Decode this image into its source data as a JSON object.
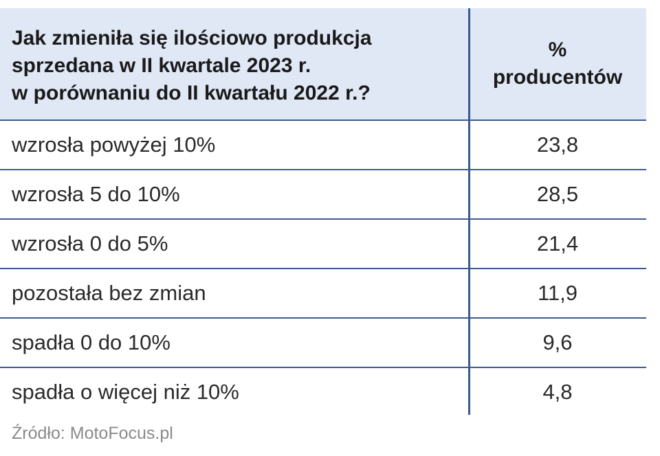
{
  "chart_data": {
    "type": "table",
    "columns": [
      "Jak zmieniła się ilościowo produkcja sprzedana w II kwartale 2023 r. w porównaniu do II kwartału 2022 r.?",
      "% producentów"
    ],
    "header_lines": [
      "Jak zmieniła się ilościowo produkcja",
      "sprzedana w II kwartale 2023 r.",
      "w porównaniu do II kwartału 2022 r.?"
    ],
    "value_header_lines": [
      "%",
      "producentów"
    ],
    "rows": [
      {
        "label": "wzrosła powyżej 10%",
        "value": "23,8"
      },
      {
        "label": "wzrosła 5 do 10%",
        "value": "28,5"
      },
      {
        "label": "wzrosła 0 do 5%",
        "value": "21,4"
      },
      {
        "label": "pozostała bez zmian",
        "value": "11,9"
      },
      {
        "label": "spadła 0 do 10%",
        "value": "9,6"
      },
      {
        "label": "spadła o więcej niż 10%",
        "value": "4,8"
      }
    ]
  },
  "source": "Źródło: MotoFocus.pl",
  "colors": {
    "header_bg": "#e0e7f5",
    "rule": "#3b5a8c"
  }
}
